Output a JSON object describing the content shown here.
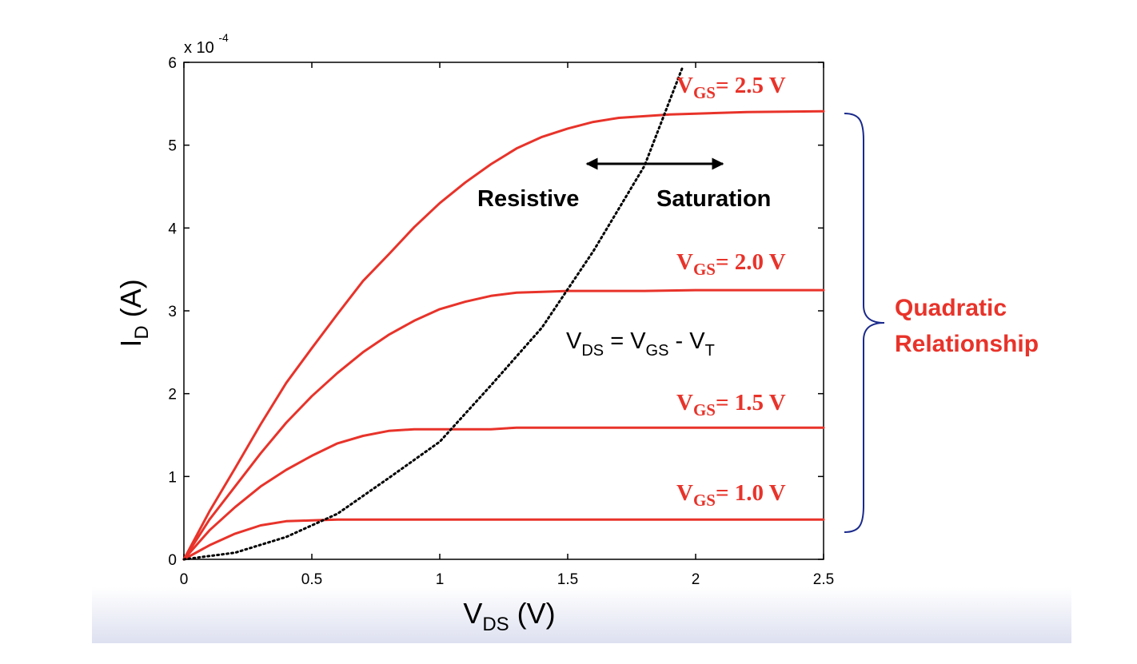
{
  "chart_data": {
    "type": "line",
    "xlabel": {
      "main": "V",
      "sub": "DS",
      "rest": " (V)"
    },
    "ylabel": {
      "main": "I",
      "sub": "D",
      "rest": " (A)"
    },
    "y_multiplier": "x 10",
    "y_multiplier_exp": "-4",
    "xlim": [
      0,
      2.5
    ],
    "ylim": [
      0,
      6
    ],
    "x_ticks": [
      0,
      0.5,
      1,
      1.5,
      2,
      2.5
    ],
    "x_tick_labels": [
      "0",
      "0.5",
      "1",
      "1.5",
      "2",
      "2.5"
    ],
    "y_ticks": [
      0,
      1,
      2,
      3,
      4,
      5,
      6
    ],
    "y_tick_labels": [
      "0",
      "1",
      "2",
      "3",
      "4",
      "5",
      "6"
    ],
    "grid": false,
    "series": [
      {
        "name": {
          "main": "V",
          "sub": "GS",
          "rest": "= 1.0 V"
        },
        "x": [
          0,
          0.1,
          0.2,
          0.3,
          0.4,
          0.5,
          0.6,
          0.8,
          1.0,
          1.5,
          2.0,
          2.5
        ],
        "y": [
          0,
          0.17,
          0.31,
          0.41,
          0.46,
          0.47,
          0.48,
          0.48,
          0.48,
          0.48,
          0.48,
          0.48
        ]
      },
      {
        "name": {
          "main": "V",
          "sub": "GS",
          "rest": "= 1.5 V"
        },
        "x": [
          0,
          0.1,
          0.2,
          0.3,
          0.4,
          0.5,
          0.6,
          0.7,
          0.8,
          0.9,
          1.0,
          1.2,
          1.3,
          1.5,
          2.0,
          2.5
        ],
        "y": [
          0,
          0.35,
          0.63,
          0.88,
          1.08,
          1.25,
          1.4,
          1.49,
          1.55,
          1.57,
          1.57,
          1.57,
          1.59,
          1.59,
          1.59,
          1.59
        ]
      },
      {
        "name": {
          "main": "V",
          "sub": "GS",
          "rest": "= 2.0 V"
        },
        "x": [
          0,
          0.1,
          0.2,
          0.3,
          0.4,
          0.5,
          0.6,
          0.7,
          0.8,
          0.9,
          1.0,
          1.1,
          1.2,
          1.3,
          1.4,
          1.5,
          1.8,
          2.0,
          2.5
        ],
        "y": [
          0,
          0.48,
          0.88,
          1.28,
          1.65,
          1.97,
          2.25,
          2.5,
          2.71,
          2.88,
          3.02,
          3.11,
          3.18,
          3.22,
          3.23,
          3.24,
          3.24,
          3.25,
          3.25
        ]
      },
      {
        "name": {
          "main": "V",
          "sub": "GS",
          "rest": "= 2.5 V"
        },
        "x": [
          0,
          0.1,
          0.2,
          0.3,
          0.4,
          0.5,
          0.6,
          0.7,
          0.8,
          0.9,
          1.0,
          1.1,
          1.2,
          1.3,
          1.4,
          1.5,
          1.6,
          1.7,
          1.8,
          1.9,
          2.0,
          2.2,
          2.5
        ],
        "y": [
          0,
          0.58,
          1.1,
          1.63,
          2.13,
          2.55,
          2.96,
          3.36,
          3.68,
          4.01,
          4.3,
          4.55,
          4.77,
          4.96,
          5.1,
          5.2,
          5.28,
          5.33,
          5.35,
          5.37,
          5.38,
          5.4,
          5.41
        ]
      }
    ],
    "boundary": {
      "label": {
        "v1": "V",
        "s1": "DS",
        "mid": " = V",
        "s2": "GS",
        "end": " - V",
        "s3": "T"
      },
      "x": [
        0,
        0.2,
        0.4,
        0.6,
        0.8,
        1.0,
        1.2,
        1.4,
        1.6,
        1.8,
        1.95
      ],
      "y": [
        0,
        0.08,
        0.27,
        0.55,
        0.98,
        1.42,
        2.1,
        2.8,
        3.72,
        4.75,
        5.95
      ]
    },
    "annotations": {
      "resistive": "Resistive",
      "saturation": "Saturation",
      "quadratic_line1": "Quadratic",
      "quadratic_line2": "Relationship"
    },
    "colors": {
      "curve": "#e8332a",
      "boundary": "#000000",
      "brace": "#1a2a8c",
      "quad_text": "#e8332a",
      "bottom_band": "#dde0f0"
    }
  }
}
